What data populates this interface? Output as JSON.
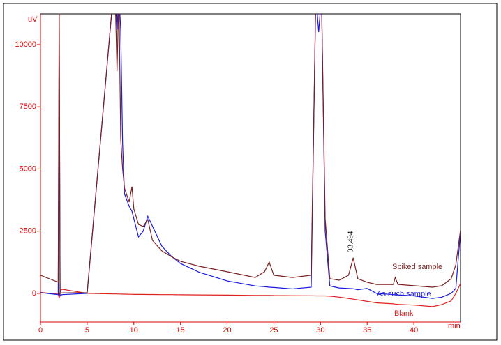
{
  "chart_data": {
    "type": "line",
    "y_label": "uV",
    "x_label": "min",
    "x": [
      0,
      1.9,
      2.0,
      2.1,
      2.3,
      5,
      7.8,
      8.0,
      8.2,
      8.4,
      8.6,
      8.8,
      9.0,
      9.5,
      9.8,
      10.0,
      10.5,
      11.0,
      11.5,
      12,
      13,
      14,
      15,
      17,
      20,
      23,
      24,
      24.5,
      25,
      27,
      29,
      29.5,
      29.8,
      30.1,
      30.5,
      31,
      32,
      33,
      33.5,
      34,
      35,
      36,
      37.8,
      38,
      38.3,
      40,
      42,
      43,
      44,
      44.5,
      45
    ],
    "series": [
      {
        "name": "Spiked sample",
        "color": "#7b1f1f",
        "values": [
          730,
          450,
          12000,
          0,
          20,
          30,
          12000,
          12000,
          8930,
          12000,
          6200,
          5000,
          4230,
          3670,
          4290,
          3390,
          2770,
          2690,
          2970,
          2130,
          1710,
          1480,
          1290,
          1090,
          870,
          640,
          870,
          1260,
          730,
          640,
          730,
          12000,
          12000,
          12000,
          3000,
          590,
          530,
          730,
          1430,
          590,
          450,
          360,
          360,
          640,
          360,
          310,
          250,
          310,
          590,
          1150,
          2550
        ]
      },
      {
        "name": "As such sample",
        "color": "#1a1ae0",
        "values": [
          30,
          -50,
          10600,
          -100,
          -50,
          0,
          12000,
          12000,
          10600,
          12000,
          10600,
          6000,
          4000,
          3500,
          3300,
          3000,
          2270,
          2500,
          3100,
          2700,
          1900,
          1500,
          1200,
          850,
          500,
          300,
          270,
          250,
          240,
          180,
          250,
          12000,
          10500,
          12000,
          2500,
          300,
          220,
          200,
          190,
          150,
          200,
          0,
          -50,
          -30,
          -60,
          -100,
          -200,
          -150,
          0,
          200,
          2500
        ]
      },
      {
        "name": "Blank",
        "color": "#e02020",
        "values": [
          40,
          -30,
          -200,
          100,
          170,
          0,
          -20,
          -20,
          -20,
          -25,
          -25,
          -30,
          -30,
          -35,
          -35,
          -40,
          -40,
          -40,
          -45,
          -45,
          -50,
          -50,
          -55,
          -60,
          -70,
          -80,
          -80,
          -80,
          -85,
          -90,
          -95,
          -100,
          -100,
          -100,
          -100,
          -110,
          -150,
          -200,
          -230,
          -260,
          -320,
          -380,
          -420,
          -430,
          -440,
          -470,
          -530,
          -450,
          -300,
          0,
          400
        ]
      }
    ],
    "annotations": [
      {
        "text": "33.494",
        "x": 33.494,
        "y": 1430
      }
    ],
    "xlim": [
      0,
      45
    ],
    "ylim": [
      -1150,
      11230
    ],
    "xticks": [
      0,
      5,
      10,
      15,
      20,
      25,
      30,
      35,
      40
    ],
    "yticks": [
      0,
      2500,
      5000,
      7500,
      10000
    ]
  }
}
